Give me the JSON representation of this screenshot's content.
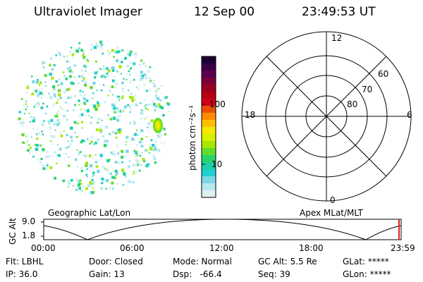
{
  "header": {
    "instrument": "Ultraviolet Imager",
    "date": "12 Sep 00",
    "time": "23:49:53 UT"
  },
  "colorbar": {
    "unit_label": "photon cm⁻²s⁻¹",
    "ticks": [
      "100",
      "10"
    ],
    "colors": [
      "#1a0033",
      "#3a0046",
      "#5a0050",
      "#7a0038",
      "#9a0020",
      "#b80010",
      "#d4001a",
      "#e85000",
      "#ff8c00",
      "#ffc000",
      "#f4e800",
      "#d6f000",
      "#a6e800",
      "#60dc2c",
      "#28d46a",
      "#1ccfa6",
      "#20d0d0",
      "#7ad8e6",
      "#b8e8ef",
      "#e0f0f3"
    ]
  },
  "polar": {
    "mlt_labels": {
      "top": "12",
      "left": "18",
      "right": "6",
      "bottom": "0"
    },
    "lat_labels": [
      "60",
      "70",
      "80"
    ]
  },
  "map_labels": {
    "left": "Geographic Lat/Lon",
    "right": "Apex MLat/MLT"
  },
  "altitude_plot": {
    "ylabel": "GC Alt",
    "yticks": [
      "9.0",
      "1.8"
    ],
    "xticks": [
      "00:00",
      "06:00",
      "12:00",
      "18:00",
      "23:59"
    ],
    "current_marker_color": "#e02020"
  },
  "status": {
    "flt": "Flt: LBHL",
    "ip": "IP: 36.0",
    "door": "Door: Closed",
    "gain": "Gain: 13",
    "mode": "Mode: Normal",
    "dsp": "Dsp:   -66.4",
    "gcalt": "GC Alt: 5.5 Re",
    "seq": "Seq: 39",
    "glat": "GLat: *****",
    "glon": "GLon: *****"
  }
}
